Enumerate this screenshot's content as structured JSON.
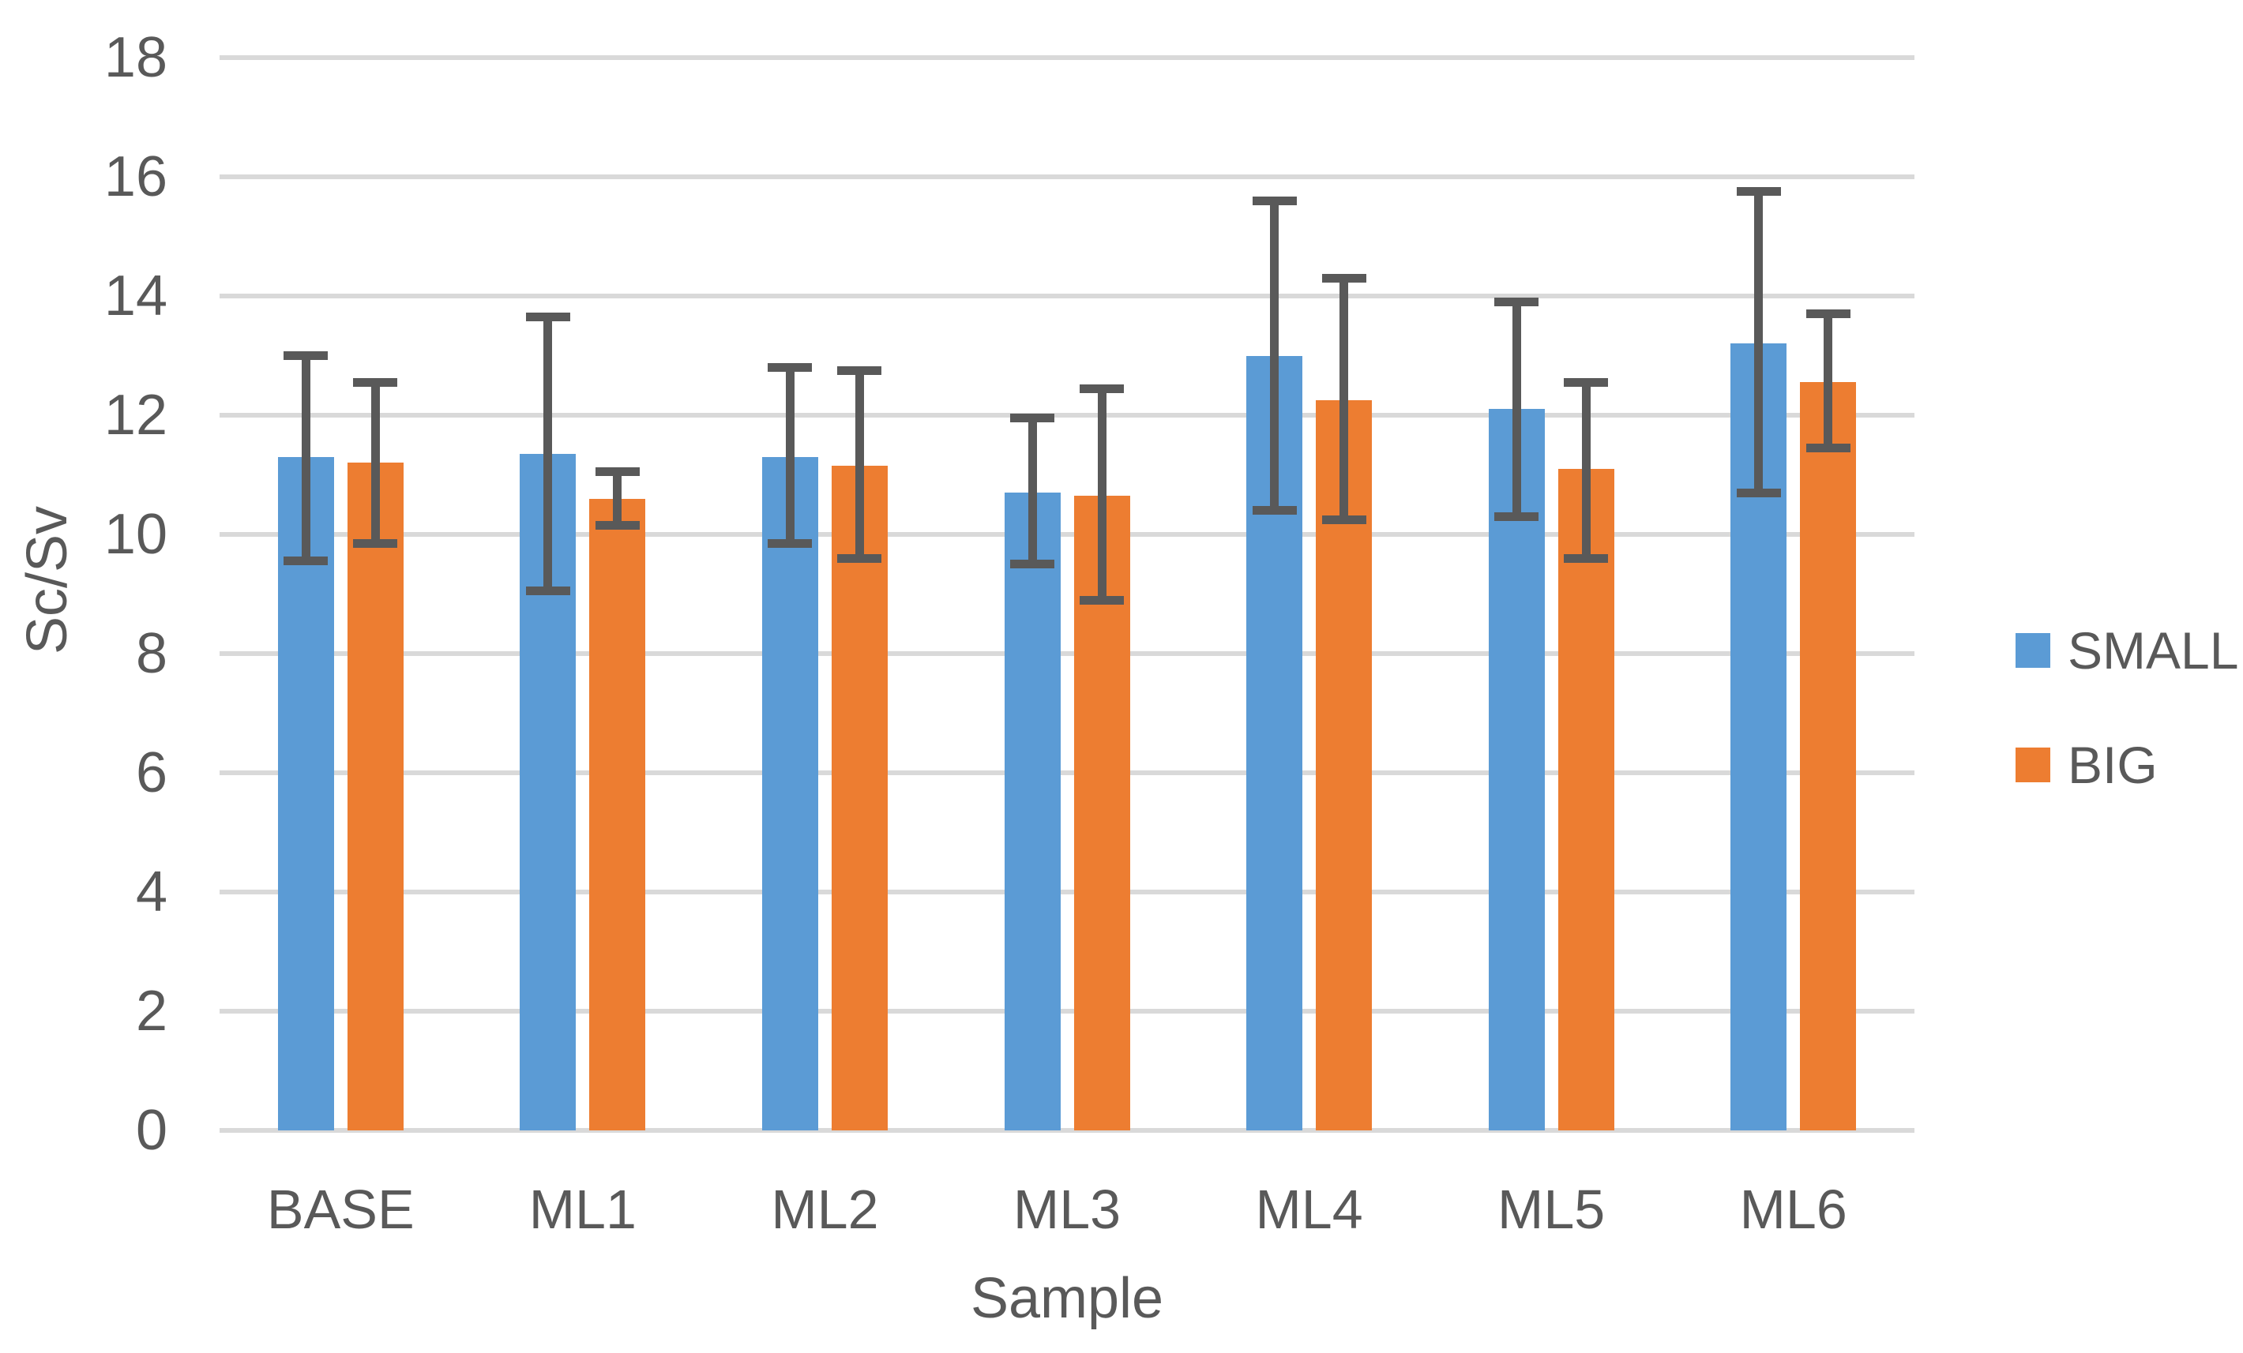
{
  "chart_data": {
    "type": "bar",
    "title": "",
    "categories": [
      "BASE",
      "ML1",
      "ML2",
      "ML3",
      "ML4",
      "ML5",
      "ML6"
    ],
    "series": [
      {
        "name": "SMALL",
        "color": "#5B9BD5",
        "values": [
          11.3,
          11.35,
          11.3,
          10.7,
          13.0,
          12.1,
          13.2
        ],
        "error_low": [
          9.55,
          9.05,
          9.85,
          9.5,
          10.4,
          10.3,
          10.7
        ],
        "error_high": [
          13.0,
          13.65,
          12.8,
          11.95,
          15.6,
          13.9,
          15.75
        ]
      },
      {
        "name": "BIG",
        "color": "#ED7D31",
        "values": [
          11.2,
          10.6,
          11.15,
          10.65,
          12.25,
          11.1,
          12.55
        ],
        "error_low": [
          9.85,
          10.15,
          9.6,
          8.9,
          10.25,
          9.6,
          11.45
        ],
        "error_high": [
          12.55,
          11.05,
          12.75,
          12.45,
          14.3,
          12.55,
          13.7
        ]
      }
    ],
    "xlabel": "Sample",
    "ylabel": "Sc/Sv",
    "ylim": [
      0,
      18
    ],
    "ytick_step": 2,
    "ytick_labels": [
      "0",
      "2",
      "4",
      "6",
      "8",
      "10",
      "12",
      "14",
      "16",
      "18"
    ],
    "grid": true,
    "legend_position": "right-middle",
    "colors": {
      "gridline": "#D9D9D9",
      "error_bar": "#595959",
      "text": "#595959",
      "background": "#FFFFFF"
    }
  }
}
